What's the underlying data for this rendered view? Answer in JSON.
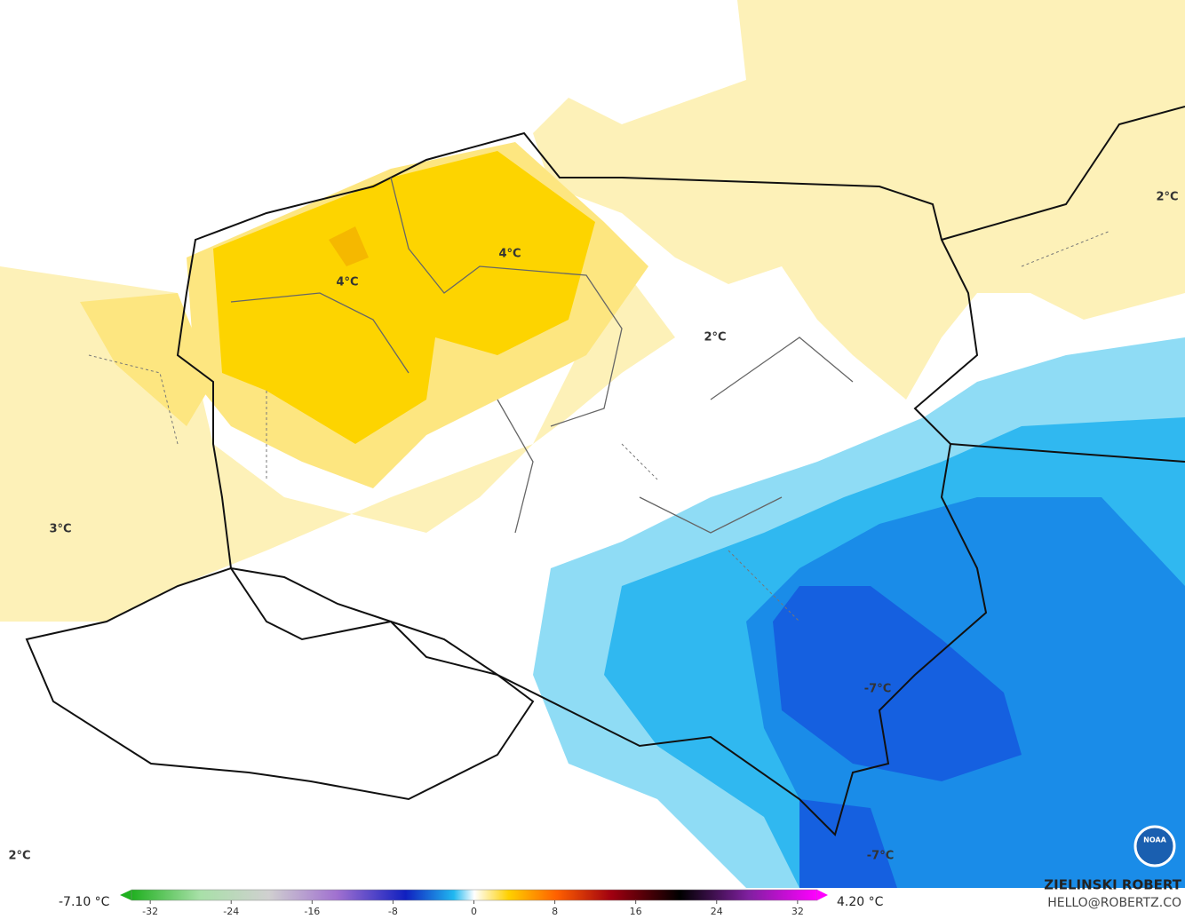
{
  "map": {
    "labels": [
      "4°C",
      "4°C",
      "2°C",
      "2°C",
      "2°C",
      "3°C",
      "-7°C",
      "-7°C"
    ]
  },
  "legend": {
    "min_label": "-7.10 °C",
    "max_label": "4.20 °C",
    "scale": {
      "lim": [
        -35,
        35
      ],
      "ticks": [
        -32,
        -24,
        -16,
        -8,
        0,
        8,
        16,
        24,
        32
      ]
    }
  },
  "credit": {
    "name": "ZIELINSKI ROBERT",
    "contact": "HELLO@ROBERTZ.CO",
    "logo": "NOAA"
  }
}
